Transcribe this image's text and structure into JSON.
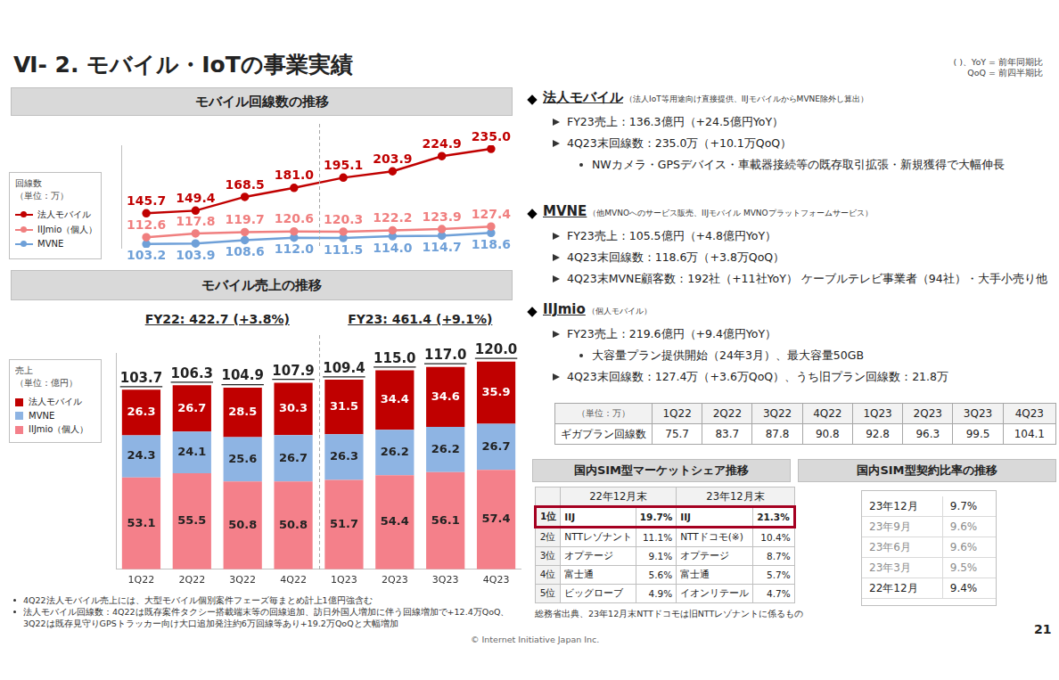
{
  "page": {
    "title": "Ⅵ- 2.  モバイル・IoTの事業実績",
    "top_notes": [
      "( )、YoY = 前年同期比",
      "QoQ = 前四半期比"
    ],
    "copyright": "© Internet Initiative Japan Inc.",
    "page_number": "21"
  },
  "chart_data": [
    {
      "type": "line",
      "title": "モバイル回線数の推移",
      "legend_title": [
        "回線数",
        "（単位：万）"
      ],
      "legend": "left",
      "categories": [
        null,
        null,
        null,
        null,
        null,
        null,
        null,
        null
      ],
      "series": [
        {
          "name": "法人モバイル",
          "color": "#c00000",
          "marker": "circle",
          "values": [
            145.7,
            149.4,
            168.5,
            181.0,
            195.1,
            203.9,
            224.9,
            235.0
          ],
          "value_labels": [
            "145.7",
            "149.4",
            "168.5",
            "181.0",
            "195.1",
            "203.9",
            "224.9",
            "235.0"
          ]
        },
        {
          "name": "IIJmio（個人）",
          "color": "#f07f7f",
          "marker": "circle",
          "values": [
            112.6,
            117.8,
            119.7,
            120.6,
            120.3,
            122.2,
            123.9,
            127.4
          ],
          "value_labels": [
            "112.6",
            "117.8",
            "119.7",
            "120.6",
            "120.3",
            "122.2",
            "123.9",
            "127.4"
          ]
        },
        {
          "name": "MVNE",
          "color": "#6fa0d8",
          "marker": "circle",
          "values": [
            103.2,
            103.9,
            108.6,
            112.0,
            111.5,
            114.0,
            114.7,
            118.6
          ],
          "value_labels": [
            "103.2",
            "103.9",
            "108.6",
            "112.0",
            "111.5",
            "114.0",
            "114.7",
            "118.6"
          ]
        }
      ],
      "ylim": [
        98,
        240
      ],
      "yticks": [],
      "grid": false,
      "tick_labels": false,
      "data_labels": true
    },
    {
      "type": "bar",
      "title": "モバイル売上の推移",
      "subtitle": [
        "FY22: 422.7 (+3.8%)",
        "FY23: 461.4 (+9.1%)"
      ],
      "legend_title": [
        "売上",
        "（単位：億円）"
      ],
      "legend": "left",
      "categories": [
        "1Q22",
        "2Q22",
        "3Q22",
        "4Q22",
        "1Q23",
        "2Q23",
        "3Q23",
        "4Q23"
      ],
      "series": [
        {
          "name": "法人モバイル",
          "color": "#c00000",
          "values": [
            26.3,
            26.7,
            28.5,
            30.3,
            31.5,
            34.4,
            34.6,
            35.9
          ]
        },
        {
          "name": "MVNE",
          "color": "#8eb4e3",
          "values": [
            24.3,
            24.1,
            25.6,
            26.7,
            26.3,
            26.2,
            26.2,
            26.7
          ]
        },
        {
          "name": "IIJmio（個人）",
          "color": "#f4808a",
          "values": [
            53.1,
            55.5,
            50.8,
            50.8,
            51.7,
            54.4,
            56.1,
            57.4
          ]
        }
      ],
      "totals": [
        103.7,
        106.3,
        104.9,
        107.9,
        109.4,
        115.0,
        117.0,
        120.0
      ],
      "total_labels": [
        "103.7",
        "106.3",
        "104.9",
        "107.9",
        "109.4",
        "115.0",
        "117.0",
        "120.0"
      ],
      "ylim": [
        0,
        125
      ],
      "yticks": [],
      "stacked": true,
      "grid": false,
      "tick_labels": "x",
      "data_labels": true,
      "notes": [
        "4Q22法人モバイル売上には、大型モバイル個別案件フェーズ毎まとめ計上1億円強含む",
        "法人モバイル回線数：4Q22は既存案件タクシー搭載端末等の回線追加、訪日外国人増加に伴う回線増加で+12.4万QoQ、3Q22は既存見守りGPSトラッカー向け大口追加発注約6万回線等あり+19.2万QoQと大幅増加"
      ]
    }
  ],
  "segments": [
    {
      "heading": "法人モバイル",
      "note": "（法人IoT等用途向け直接提供、IIJモバイルからMVNE除外し算出）",
      "items": [
        {
          "text": "FY23売上：136.3億円（+24.5億円YoY）"
        },
        {
          "text": "4Q23末回線数：235.0万（+10.1万QoQ）",
          "sub": [
            "NWカメラ・GPSデバイス・車載器接続等の既存取引拡張・新規獲得で大幅伸長"
          ]
        }
      ]
    },
    {
      "heading": "MVNE",
      "note": "（他MVNOへのサービス販売、IIJモバイル MVNOプラットフォームサービス）",
      "items": [
        {
          "text": "FY23売上：105.5億円（+4.8億円YoY）"
        },
        {
          "text": "4Q23末回線数：118.6万（+3.8万QoQ）"
        },
        {
          "text": "4Q23末MVNE顧客数：192社（+11社YoY） ケーブルテレビ事業者（94社）・大手小売り他"
        }
      ]
    },
    {
      "heading": "IIJmio",
      "note": "（個人モバイル）",
      "items": [
        {
          "text": "FY23売上：219.6億円（+9.4億円YoY）",
          "sub": [
            "大容量プラン提供開始（24年3月）、最大容量50GB"
          ]
        },
        {
          "text": "4Q23末回線数：127.4万（+3.6万QoQ）、うち旧プラン回線数：21.8万"
        }
      ]
    }
  ],
  "giga_table": {
    "header": [
      "（単位：万）",
      "1Q22",
      "2Q22",
      "3Q22",
      "4Q22",
      "1Q23",
      "2Q23",
      "3Q23",
      "4Q23"
    ],
    "rows": [
      [
        "ギガプラン回線数",
        "75.7",
        "83.7",
        "87.8",
        "90.8",
        "92.8",
        "96.3",
        "99.5",
        "104.1"
      ]
    ]
  },
  "share_table": {
    "title": "国内SIM型マーケットシェア推移",
    "header": [
      "22年12月末",
      "23年12月末"
    ],
    "rows": [
      [
        "1位",
        "IIJ",
        "19.7%",
        "IIJ",
        "21.3%"
      ],
      [
        "2位",
        "NTTレゾナント",
        "11.1%",
        "NTTドコモ(※)",
        "10.4%"
      ],
      [
        "3位",
        "オプテージ",
        "9.1%",
        "オプテージ",
        "8.7%"
      ],
      [
        "4位",
        "富士通",
        "5.6%",
        "富士通",
        "5.7%"
      ],
      [
        "5位",
        "ビッグローブ",
        "4.9%",
        "イオンリテール",
        "4.7%"
      ]
    ],
    "note": "総務省出典、23年12月末NTTドコモは旧NTTレゾナントに係るもの"
  },
  "ratio_table": {
    "title": "国内SIM型契約比率の推移",
    "rows": [
      [
        "23年12月",
        "9.7%"
      ],
      [
        "23年9月",
        "9.6%"
      ],
      [
        "23年6月",
        "9.6%"
      ],
      [
        "23年3月",
        "9.5%"
      ],
      [
        "22年12月",
        "9.4%"
      ]
    ]
  }
}
